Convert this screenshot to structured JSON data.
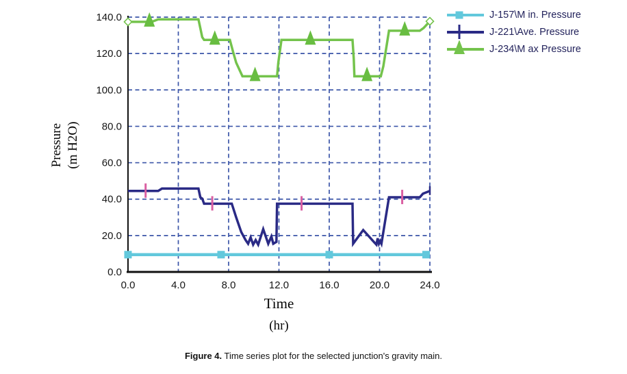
{
  "figure": {
    "caption_prefix": "Figure 4.",
    "caption_text": " Time series plot for the selected junction's gravity main."
  },
  "chart_data": {
    "type": "line",
    "title": "",
    "xlabel": "Time",
    "xlabel_unit": "(hr)",
    "ylabel_line1": "Pressure",
    "ylabel_line2": "(m H2O)",
    "xlim": [
      0,
      24
    ],
    "ylim": [
      0,
      140
    ],
    "xticks": [
      0,
      4,
      8,
      12,
      16,
      20,
      24
    ],
    "xtick_labels": [
      "0.0",
      "4.0",
      "8.0",
      "12.0",
      "16.0",
      "20.0",
      "24.0"
    ],
    "yticks": [
      0,
      20,
      40,
      60,
      80,
      100,
      120,
      140
    ],
    "ytick_labels": [
      "0.0",
      "20.0",
      "40.0",
      "60.0",
      "80.0",
      "100.0",
      "120.0",
      "140.0"
    ],
    "grid": "dashed",
    "grid_color": "#3B55A8",
    "axis_color": "#111111",
    "legend_position": "top-right",
    "series": [
      {
        "id": "j157-min",
        "name": "J-157\\M in. Pressure",
        "color": "#62C8DC",
        "line_width": 4.5,
        "marker_shape": "square",
        "marker_color": "#62C8DC",
        "points": [
          [
            0,
            9.5
          ],
          [
            24,
            9.5
          ]
        ],
        "markers": [
          [
            0,
            9.5
          ],
          [
            7.4,
            9.5
          ],
          [
            16,
            9.5
          ],
          [
            23.7,
            9.5
          ]
        ],
        "endpoint_markers": []
      },
      {
        "id": "j221-ave",
        "name": "J-221\\Ave. Pressure",
        "color": "#2A2A85",
        "line_width": 3.5,
        "marker_shape": "vtick",
        "marker_color": "#DA5FA2",
        "points": [
          [
            0,
            44.5
          ],
          [
            2.4,
            44.5
          ],
          [
            2.7,
            45.8
          ],
          [
            5.6,
            45.8
          ],
          [
            5.75,
            41
          ],
          [
            5.9,
            40.3
          ],
          [
            6.05,
            37.5
          ],
          [
            8.25,
            37.5
          ],
          [
            8.6,
            30
          ],
          [
            9.0,
            22
          ],
          [
            9.35,
            17.5
          ],
          [
            9.55,
            15.5
          ],
          [
            9.75,
            19
          ],
          [
            9.95,
            15
          ],
          [
            10.15,
            17.5
          ],
          [
            10.35,
            15
          ],
          [
            10.75,
            23.5
          ],
          [
            11.15,
            15.5
          ],
          [
            11.4,
            19.5
          ],
          [
            11.55,
            15.5
          ],
          [
            11.8,
            16.5
          ],
          [
            11.85,
            37.5
          ],
          [
            17.85,
            37.5
          ],
          [
            17.9,
            15.5
          ],
          [
            18.7,
            23
          ],
          [
            19.55,
            16.5
          ],
          [
            19.75,
            15
          ],
          [
            19.85,
            18.5
          ],
          [
            19.95,
            15.5
          ],
          [
            20.05,
            17
          ],
          [
            20.15,
            15.5
          ],
          [
            20.75,
            41
          ],
          [
            23.2,
            41
          ],
          [
            23.45,
            43
          ],
          [
            24,
            44.5
          ]
        ],
        "markers": [
          [
            1.4,
            44.5
          ],
          [
            6.7,
            37.5
          ],
          [
            13.8,
            37.5
          ],
          [
            21.8,
            41
          ]
        ],
        "endpoint_markers": [
          {
            "shape": "vtick-small",
            "x": 24,
            "y": 44.5,
            "color": "#2A2A85"
          }
        ]
      },
      {
        "id": "j234-max",
        "name": "J-234\\M ax Pressure",
        "color": "#74C34C",
        "line_width": 3.5,
        "marker_shape": "triangle",
        "marker_color": "#68BD41",
        "points": [
          [
            0,
            137.4
          ],
          [
            1.9,
            137.4
          ],
          [
            2.1,
            138
          ],
          [
            2.4,
            138.8
          ],
          [
            5.6,
            138.8
          ],
          [
            5.75,
            134
          ],
          [
            5.9,
            129
          ],
          [
            6.05,
            127.5
          ],
          [
            8.1,
            127.5
          ],
          [
            8.35,
            121
          ],
          [
            8.6,
            115
          ],
          [
            9.1,
            107.5
          ],
          [
            11.5,
            107.5
          ],
          [
            11.85,
            107.5
          ],
          [
            11.95,
            115
          ],
          [
            12.2,
            127.5
          ],
          [
            17.85,
            127.5
          ],
          [
            17.95,
            117
          ],
          [
            18.0,
            107.5
          ],
          [
            20.1,
            107.5
          ],
          [
            20.3,
            113
          ],
          [
            20.75,
            132.5
          ],
          [
            23.2,
            132.5
          ],
          [
            23.5,
            134
          ],
          [
            24,
            137.7
          ]
        ],
        "markers": [
          [
            1.7,
            137.4
          ],
          [
            6.9,
            127.5
          ],
          [
            10.1,
            107.5
          ],
          [
            14.5,
            127.5
          ],
          [
            19.0,
            107.5
          ],
          [
            22.0,
            132.5
          ]
        ],
        "endpoint_markers": [
          {
            "shape": "diamond-open",
            "x": 0,
            "y": 137.4,
            "color": "#74C34C"
          },
          {
            "shape": "diamond-open",
            "x": 24,
            "y": 137.7,
            "color": "#74C34C"
          }
        ]
      }
    ]
  }
}
